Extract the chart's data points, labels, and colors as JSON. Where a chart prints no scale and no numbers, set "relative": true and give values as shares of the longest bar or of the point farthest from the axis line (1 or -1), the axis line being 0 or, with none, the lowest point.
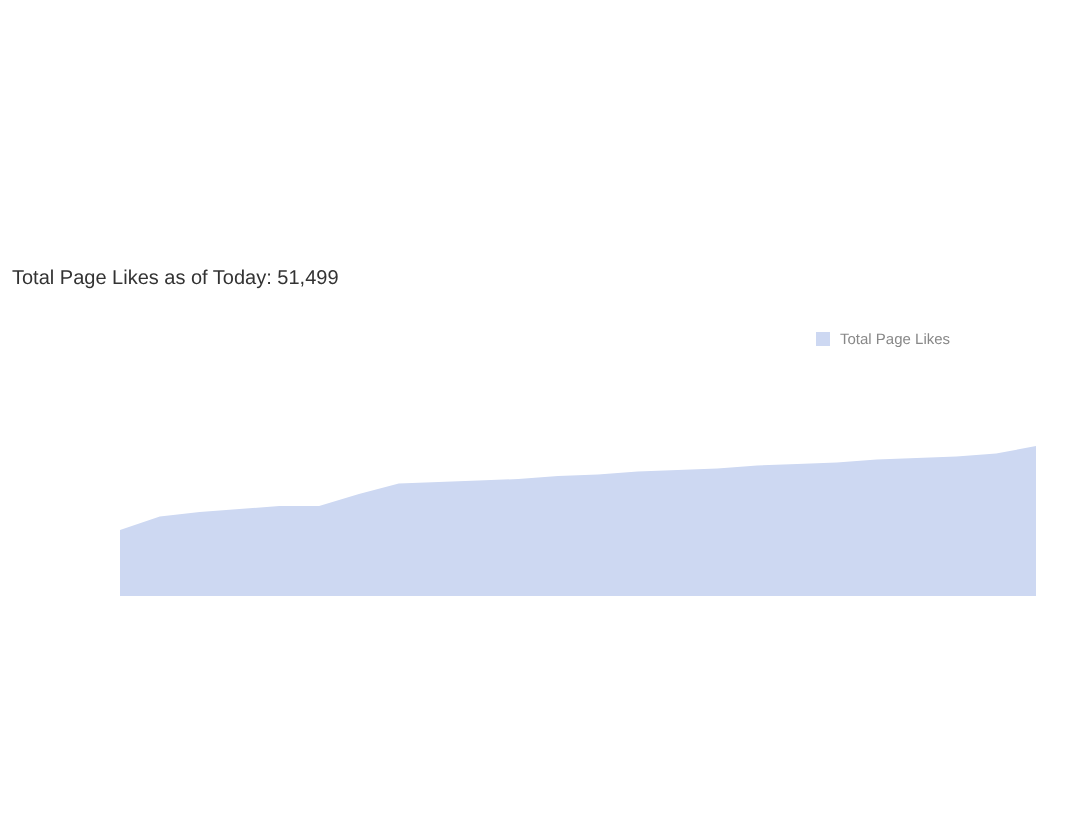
{
  "chart_data": {
    "type": "area",
    "title": "Total Page Likes as of Today: 51,499",
    "relative": true,
    "legend": "top right",
    "categories": [
      null,
      null,
      null,
      null,
      null,
      null,
      null,
      null,
      null,
      null,
      null,
      null,
      null,
      null,
      null,
      null,
      null,
      null,
      null,
      null,
      null,
      null,
      null,
      null
    ],
    "series": [
      {
        "name": "Total Page Likes",
        "color": "#cdd8f2",
        "values": [
          0.44,
          0.53,
          0.56,
          0.58,
          0.6,
          0.6,
          0.68,
          0.75,
          0.76,
          0.77,
          0.78,
          0.8,
          0.81,
          0.83,
          0.84,
          0.85,
          0.87,
          0.88,
          0.89,
          0.91,
          0.92,
          0.93,
          0.95,
          1
        ]
      }
    ]
  }
}
